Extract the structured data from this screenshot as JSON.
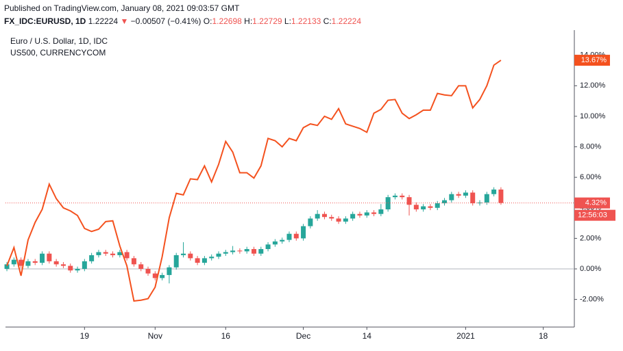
{
  "header": {
    "published": "Published on TradingView.com, January 08, 2021 09:03:57 GMT",
    "symbol": "FX_IDC:EURUSD, 1D",
    "last": "1.22224",
    "arrow": "▼",
    "change": "−0.00507 (−0.41%)",
    "ohlc": [
      {
        "label": "O:",
        "value": "1.22698"
      },
      {
        "label": "H:",
        "value": "1.22729"
      },
      {
        "label": "L:",
        "value": "1.22133"
      },
      {
        "label": "C:",
        "value": "1.22224"
      }
    ]
  },
  "chart_data": {
    "type": "candlestick",
    "title": "Euro / U.S. Dollar, 1D, IDC",
    "up_color": "#26a69a",
    "down_color": "#ef5350",
    "open": [
      0,
      0.3,
      0.6,
      0.2,
      0.5,
      0.4,
      1.0,
      0.5,
      0.3,
      0.2,
      -0.1,
      0.0,
      0.5,
      0.9,
      1.1,
      1.0,
      0.9,
      1.1,
      0.7,
      0.3,
      0.0,
      -0.3,
      -0.6,
      -0.4,
      0.1,
      0.9,
      1.0,
      0.7,
      0.4,
      0.7,
      0.8,
      1.0,
      1.1,
      1.2,
      1.15,
      1.3,
      1.0,
      1.3,
      1.6,
      1.8,
      1.9,
      2.3,
      2.0,
      2.8,
      3.3,
      3.6,
      3.4,
      3.3,
      3.1,
      3.3,
      3.6,
      3.5,
      3.7,
      3.6,
      3.9,
      4.7,
      4.8,
      4.7,
      4.2,
      3.9,
      4.1,
      4.0,
      4.3,
      4.5,
      4.9,
      4.8,
      5.0,
      4.3,
      4.35,
      4.9,
      5.2
    ],
    "high": [
      0.45,
      0.75,
      0.75,
      0.65,
      0.65,
      1.15,
      1.15,
      0.65,
      0.45,
      0.35,
      0.15,
      0.65,
      1.05,
      1.25,
      1.25,
      1.15,
      1.25,
      1.25,
      0.85,
      0.45,
      0.15,
      -0.15,
      -0.25,
      0.25,
      1.05,
      1.75,
      1.15,
      0.85,
      0.85,
      0.95,
      1.15,
      1.25,
      1.5,
      1.35,
      1.45,
      1.45,
      1.45,
      1.75,
      1.95,
      2.05,
      2.45,
      2.45,
      2.95,
      3.45,
      3.85,
      3.75,
      3.55,
      3.45,
      3.45,
      3.75,
      3.75,
      3.85,
      3.85,
      4.25,
      4.85,
      4.95,
      4.95,
      4.85,
      4.35,
      4.25,
      4.25,
      4.45,
      4.65,
      5.05,
      5.05,
      5.15,
      5.15,
      4.5,
      5.05,
      5.35,
      5.35
    ],
    "low": [
      -0.15,
      0.15,
      0.05,
      0.05,
      0.25,
      0.25,
      0.35,
      0.15,
      0.05,
      -0.25,
      -0.25,
      -0.15,
      0.35,
      0.75,
      0.85,
      0.75,
      0.75,
      0.55,
      0.15,
      -0.15,
      -0.45,
      -0.75,
      -0.75,
      -0.95,
      -0.05,
      0.75,
      0.55,
      0.25,
      0.25,
      0.55,
      0.65,
      0.85,
      0.95,
      1.0,
      1.0,
      0.85,
      0.85,
      1.15,
      1.45,
      1.65,
      1.75,
      1.85,
      1.85,
      2.65,
      3.15,
      3.25,
      3.15,
      2.95,
      2.95,
      3.15,
      3.35,
      3.35,
      3.45,
      3.45,
      3.75,
      4.55,
      4.55,
      3.5,
      3.75,
      3.75,
      3.85,
      3.85,
      4.15,
      4.35,
      4.65,
      4.65,
      4.15,
      4.15,
      4.2,
      4.75,
      4.2
    ],
    "close": [
      0.3,
      0.6,
      0.2,
      0.5,
      0.4,
      1.0,
      0.5,
      0.3,
      0.2,
      -0.1,
      0.0,
      0.5,
      0.9,
      1.1,
      1.0,
      0.9,
      1.1,
      0.7,
      0.3,
      0.0,
      -0.3,
      -0.6,
      -0.4,
      0.1,
      0.9,
      1.0,
      0.7,
      0.4,
      0.7,
      0.8,
      1.0,
      1.1,
      1.2,
      1.15,
      1.3,
      1.0,
      1.3,
      1.6,
      1.8,
      1.9,
      2.3,
      2.0,
      2.8,
      3.3,
      3.6,
      3.4,
      3.3,
      3.1,
      3.3,
      3.6,
      3.5,
      3.7,
      3.6,
      3.9,
      4.7,
      4.8,
      4.7,
      4.2,
      3.9,
      4.1,
      4.0,
      4.3,
      4.5,
      4.9,
      4.8,
      5.0,
      4.3,
      4.35,
      4.9,
      5.2,
      4.32
    ],
    "series": [
      {
        "name": "US500, CURRENCYCOM",
        "type": "line",
        "color": "#f4511e",
        "values": [
          0.2,
          1.4,
          -0.45,
          1.9,
          3.05,
          3.9,
          5.55,
          4.6,
          4.0,
          3.8,
          3.5,
          2.65,
          2.45,
          2.6,
          3.1,
          3.15,
          1.5,
          0.2,
          -2.1,
          -2.05,
          -1.95,
          -1.2,
          0.8,
          3.35,
          4.95,
          4.85,
          5.9,
          5.85,
          6.75,
          5.7,
          6.85,
          8.35,
          7.65,
          6.3,
          6.3,
          5.95,
          6.75,
          8.55,
          8.4,
          8.0,
          8.55,
          8.4,
          9.25,
          9.5,
          9.4,
          10.0,
          9.8,
          10.5,
          9.5,
          9.35,
          9.2,
          8.95,
          10.2,
          10.45,
          11.05,
          11.1,
          10.2,
          9.85,
          10.1,
          10.4,
          10.4,
          11.5,
          11.4,
          11.35,
          12.0,
          12.0,
          10.55,
          11.1,
          12.0,
          13.35,
          13.67
        ]
      }
    ],
    "price_labels": [
      {
        "value": 13.67,
        "label": "13.67%",
        "color": "#f4511e"
      },
      {
        "value": 4.32,
        "label": "4.32%",
        "color": "#ef5350",
        "countdown": "12:56:03"
      }
    ],
    "ylim": [
      -3.81,
      14.48
    ],
    "yticks": [
      {
        "value": -2,
        "label": "-2.00%"
      },
      {
        "value": 0,
        "label": "0.00%"
      },
      {
        "value": 2,
        "label": "2.00%"
      },
      {
        "value": 4,
        "label": "4.00%"
      },
      {
        "value": 6,
        "label": "6.00%"
      },
      {
        "value": 8,
        "label": "8.00%"
      },
      {
        "value": 10,
        "label": "10.00%"
      },
      {
        "value": 12,
        "label": "12.00%"
      },
      {
        "value": 14,
        "label": "14.00%"
      }
    ],
    "xlim": [
      -0.2,
      80.4
    ],
    "xticks": [
      {
        "value": 11,
        "label": "19"
      },
      {
        "value": 21,
        "label": "Nov"
      },
      {
        "value": 31,
        "label": "16"
      },
      {
        "value": 42,
        "label": "Dec"
      },
      {
        "value": 51,
        "label": "14"
      },
      {
        "value": 65,
        "label": "2021"
      },
      {
        "value": 76,
        "label": "18"
      }
    ],
    "zero_line": 0
  }
}
